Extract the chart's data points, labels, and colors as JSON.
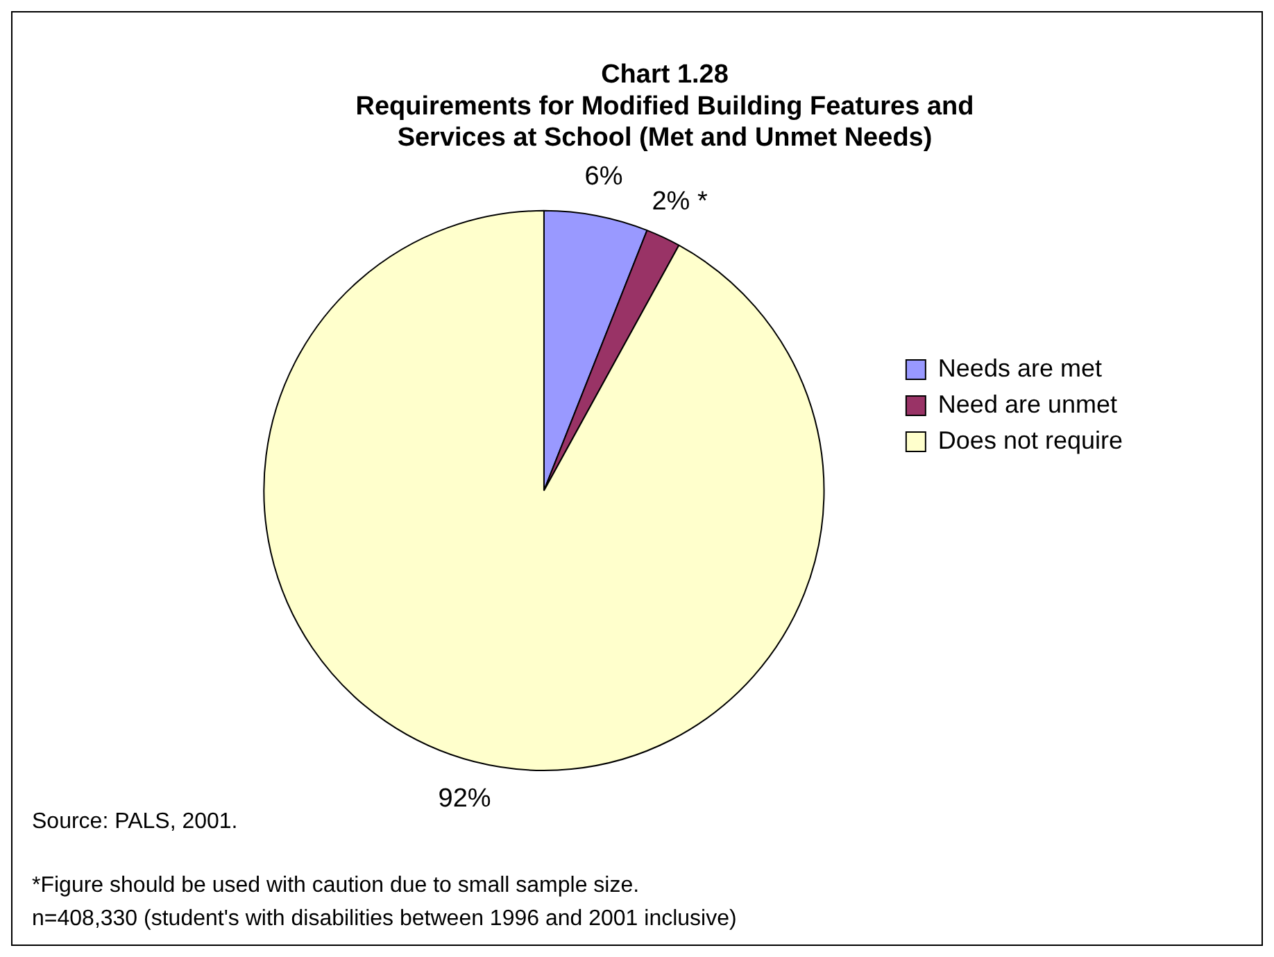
{
  "chart_data": {
    "type": "pie",
    "title": "Chart 1.28\nRequirements for Modified Building Features and\nServices at School (Met and Unmet Needs)",
    "categories": [
      "Needs are met",
      "Need are unmet",
      "Does not require"
    ],
    "values": [
      6,
      2,
      92
    ],
    "colors": [
      "#9999ff",
      "#993366",
      "#ffffcc"
    ],
    "value_labels": [
      "6%",
      "2% *",
      "92%"
    ],
    "legend": "right",
    "annotations": [
      "Source: PALS, 2001.",
      "*Figure should be used with caution due to small sample size.",
      "n=408,330 (student's with disabilities between 1996 and 2001 inclusive)"
    ]
  }
}
